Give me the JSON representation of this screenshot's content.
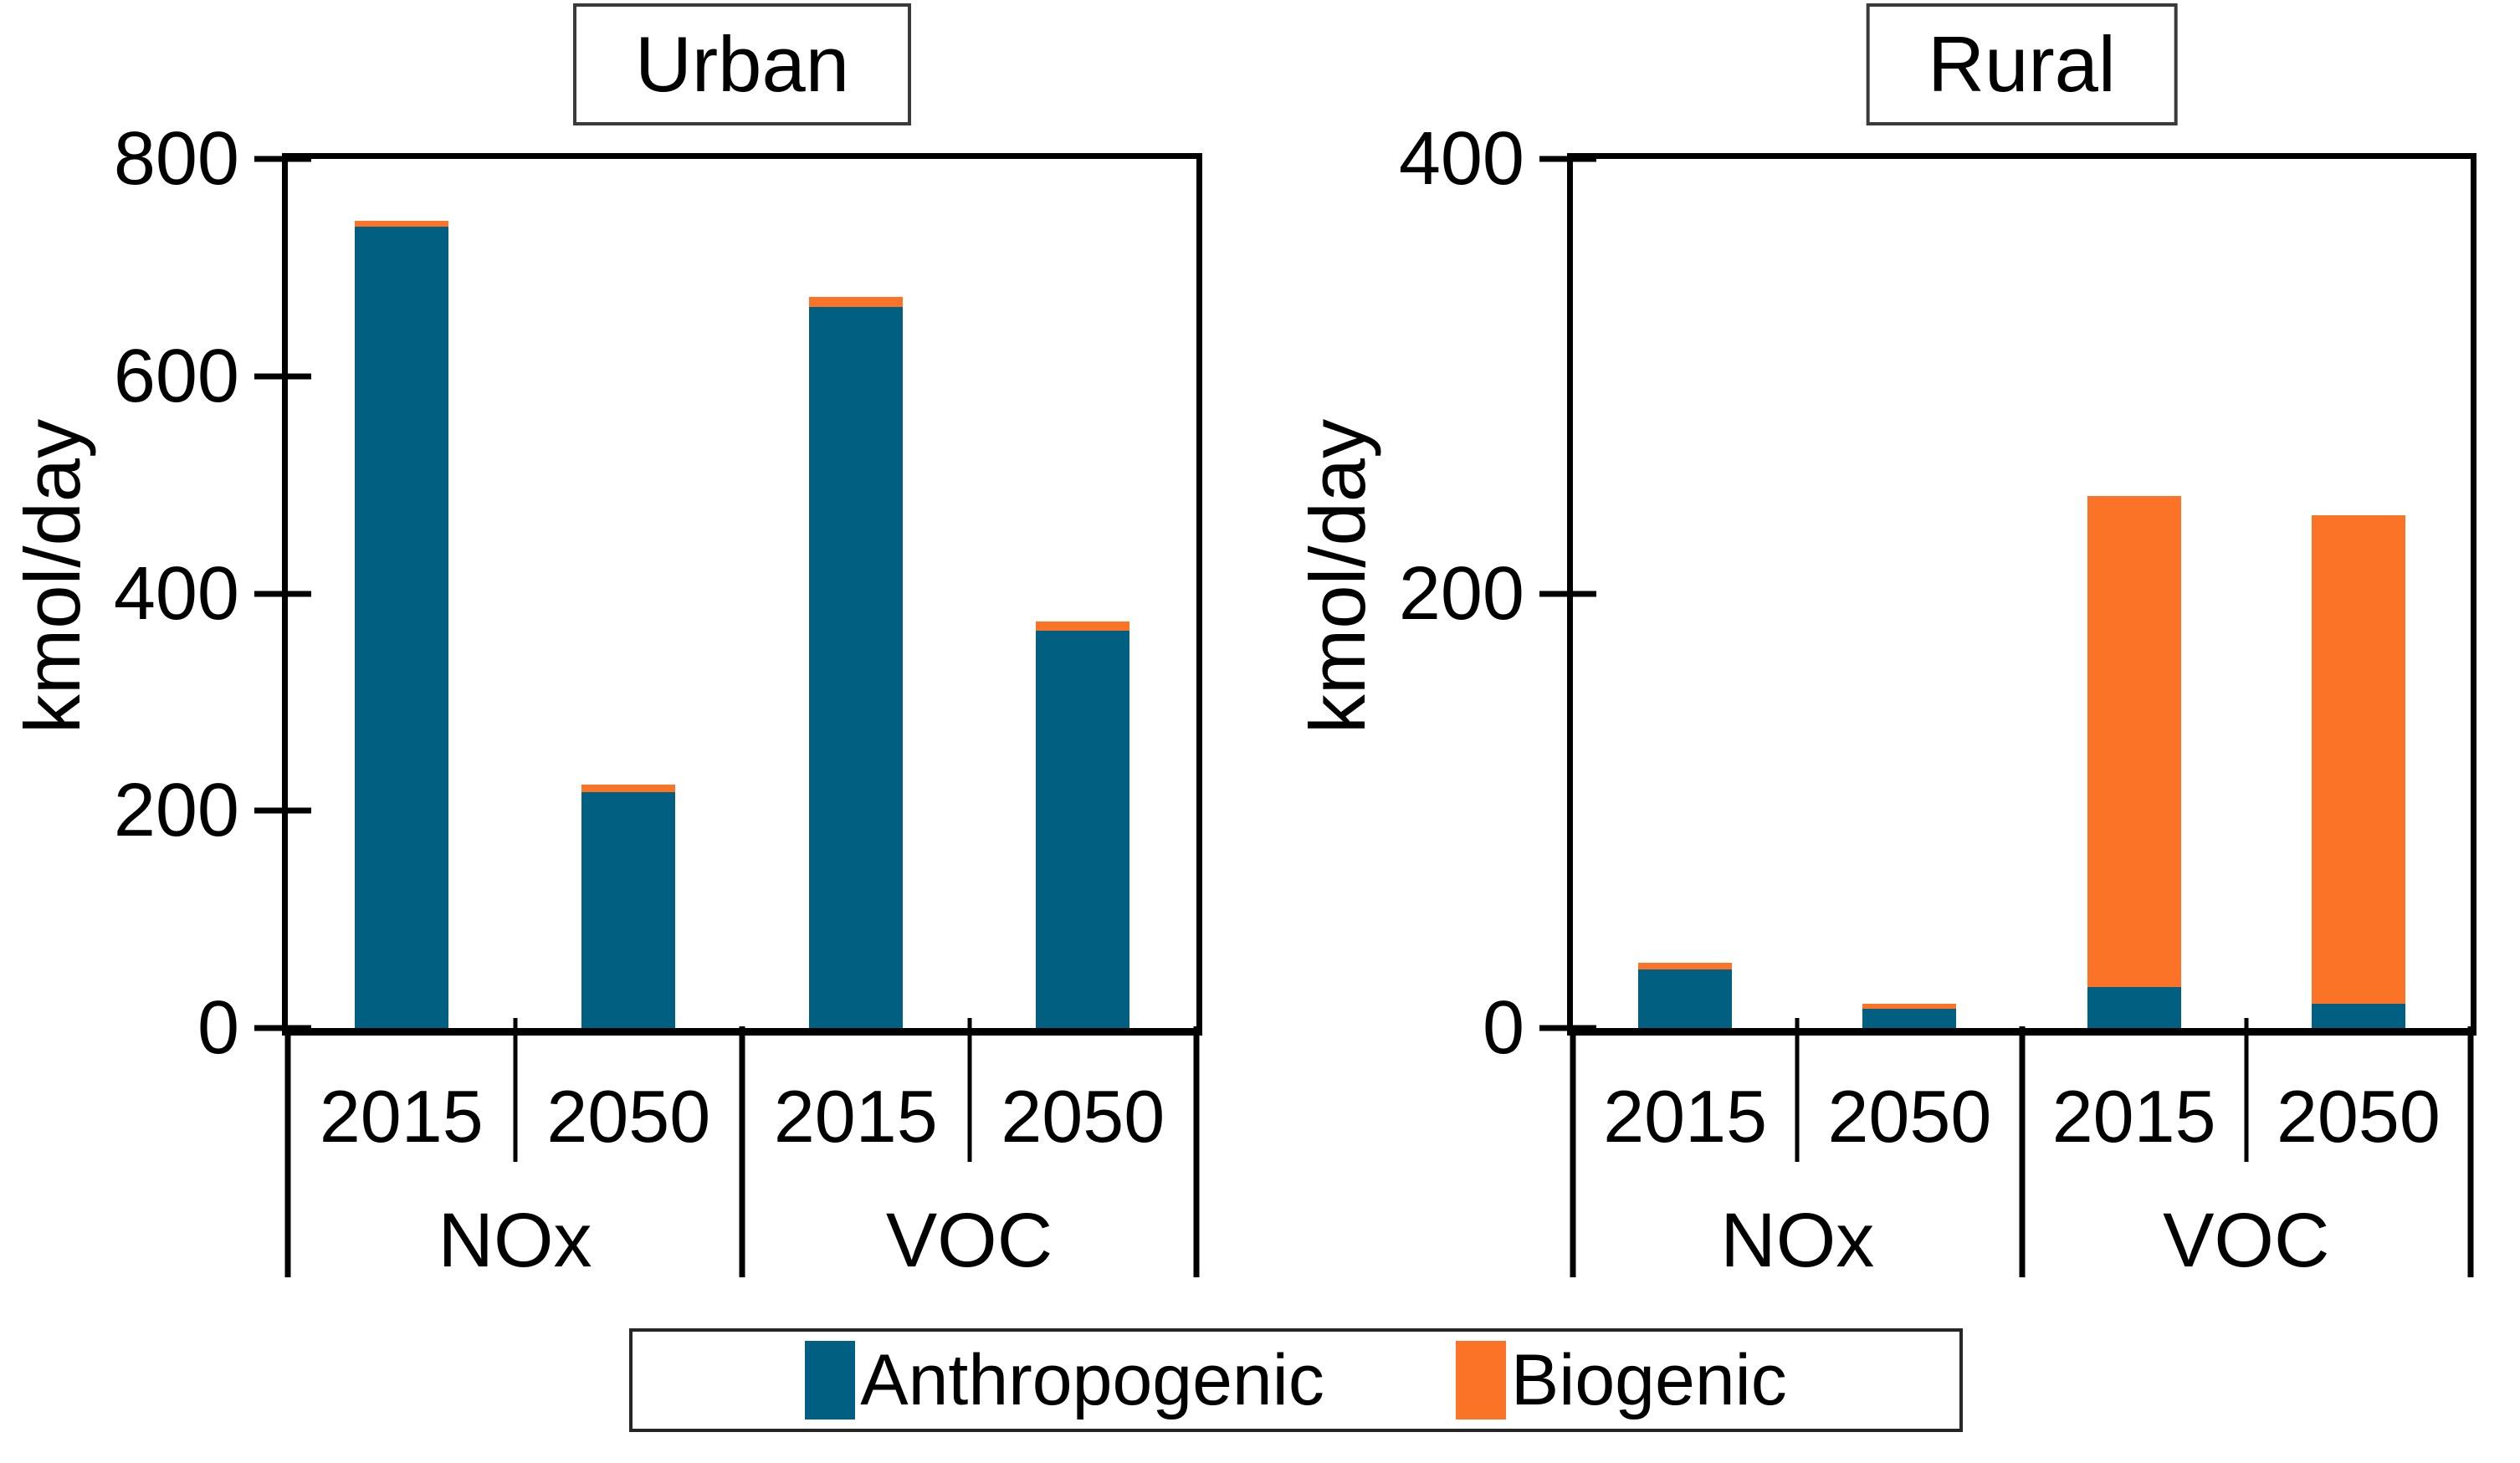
{
  "page": {
    "background": "#ffffff"
  },
  "colors": {
    "anthropogenic": "#015f82",
    "biogenic": "#fb7327",
    "axis": "#000000"
  },
  "legend": {
    "items": [
      {
        "label": "Anthropogenic",
        "color_key": "anthropogenic"
      },
      {
        "label": "Biogenic",
        "color_key": "biogenic"
      }
    ]
  },
  "chart_data": [
    {
      "type": "bar",
      "stacked": true,
      "title": "Urban",
      "ylabel": "kmol/day",
      "ylim": [
        0,
        800
      ],
      "yticks": [
        0,
        200,
        400,
        600,
        800
      ],
      "grid": false,
      "legend_position": "bottom-shared",
      "group_labels": [
        "NOx",
        "VOC"
      ],
      "categories": [
        "2015",
        "2050",
        "2015",
        "2050"
      ],
      "series": [
        {
          "name": "Anthropogenic",
          "color_key": "anthropogenic",
          "values": [
            738,
            217,
            664,
            366
          ]
        },
        {
          "name": "Biogenic",
          "color_key": "biogenic",
          "values": [
            5,
            7,
            9,
            8
          ]
        }
      ]
    },
    {
      "type": "bar",
      "stacked": true,
      "title": "Rural",
      "ylabel": "kmol/day",
      "ylim": [
        0,
        400
      ],
      "yticks": [
        0,
        200,
        400
      ],
      "grid": false,
      "legend_position": "bottom-shared",
      "group_labels": [
        "NOx",
        "VOC"
      ],
      "categories": [
        "2015",
        "2050",
        "2015",
        "2050"
      ],
      "series": [
        {
          "name": "Anthropogenic",
          "color_key": "anthropogenic",
          "values": [
            27,
            9,
            19,
            11
          ]
        },
        {
          "name": "Biogenic",
          "color_key": "biogenic",
          "values": [
            3,
            2,
            226,
            225
          ]
        }
      ]
    }
  ]
}
